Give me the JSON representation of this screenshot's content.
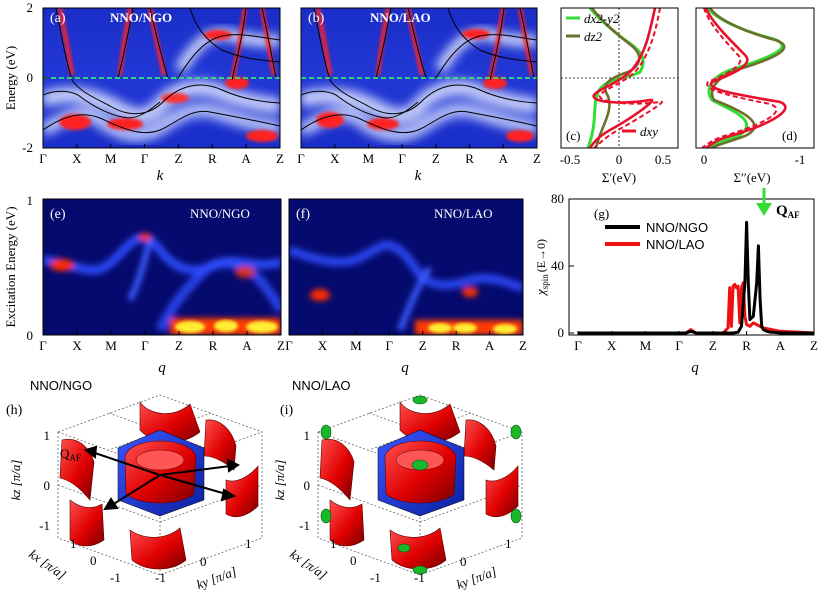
{
  "chart_data": [
    {
      "id": "a",
      "type": "heatmap",
      "label": "(a)",
      "title": "NNO/NGO",
      "ylabel": "Energy (eV)",
      "xlabel": "k",
      "ylim": [
        -2,
        2
      ],
      "yticks": [
        "2",
        "0",
        "-2"
      ],
      "ticks": [
        "Γ",
        "X",
        "M",
        "Γ",
        "Z",
        "R",
        "A",
        "Z"
      ]
    },
    {
      "id": "b",
      "type": "heatmap",
      "label": "(b)",
      "title": "NNO/LAO",
      "xlabel": "k",
      "ylim": [
        -2,
        2
      ],
      "ticks": [
        "Γ",
        "X",
        "M",
        "Γ",
        "Z",
        "R",
        "A",
        "Z"
      ]
    },
    {
      "id": "c",
      "type": "line",
      "label": "(c)",
      "xlabel": "Σ′(eV)",
      "xticks": [
        "-0.5",
        "0",
        "0.5"
      ],
      "xlim": [
        -0.6,
        0.7
      ],
      "legend": [
        "dx2-y2",
        "dz2",
        "dxy"
      ],
      "colors": {
        "dx2-y2": "#33dd33",
        "dz2": "#6f6f2f",
        "dxy": "#e8102a"
      }
    },
    {
      "id": "d",
      "type": "line",
      "label": "(d)",
      "xlabel": "Σ′′(eV)",
      "xticks": [
        "0",
        "-1"
      ],
      "xlim": [
        0.1,
        -1.1
      ]
    },
    {
      "id": "e",
      "type": "heatmap",
      "label": "(e)",
      "title": "NNO/NGO",
      "ylabel": "Excitation Energy (eV)",
      "xlabel": "q",
      "ylim": [
        0,
        1
      ],
      "yticks": [
        "1",
        "0"
      ],
      "ticks": [
        "Γ",
        "X",
        "M",
        "Γ",
        "Z",
        "R",
        "A",
        "Z"
      ]
    },
    {
      "id": "f",
      "type": "heatmap",
      "label": "(f)",
      "title": "NNO/LAO",
      "xlabel": "q",
      "ticks": [
        "Γ",
        "X",
        "M",
        "Γ",
        "Z",
        "R",
        "A",
        "Z"
      ]
    },
    {
      "id": "g",
      "type": "line",
      "label": "(g)",
      "ylabel": "χ″spin (E→0)",
      "ylabel_main": "χ",
      "ylabel_sub": "spin",
      "ylabel_rest": "(E→0)",
      "xlabel": "q",
      "ylim": [
        0,
        80
      ],
      "yticks": [
        "0",
        "40",
        "80"
      ],
      "ticks": [
        "Γ",
        "X",
        "M",
        "Γ",
        "Z",
        "R",
        "A",
        "Z"
      ],
      "annotation": "Q",
      "annotation_sub": "AF",
      "series": [
        {
          "name": "NNO/NGO",
          "color": "#000000",
          "x": [
            0,
            3.2,
            3.35,
            3.5,
            4.2,
            4.6,
            4.75,
            4.85,
            4.95,
            5.0,
            5.05,
            5.1,
            5.2,
            5.3,
            5.35,
            5.4,
            5.45,
            5.5,
            5.6,
            5.7,
            5.8,
            6.0,
            7.0
          ],
          "values": [
            0,
            0,
            1,
            0,
            0,
            0,
            0.5,
            4,
            30,
            66,
            30,
            8,
            10,
            30,
            52,
            20,
            4,
            2,
            1,
            0.5,
            0.5,
            0,
            0
          ]
        },
        {
          "name": "NNO/LAO",
          "color": "#ee1111",
          "x": [
            0,
            3.2,
            3.35,
            3.5,
            4.3,
            4.45,
            4.5,
            4.55,
            4.6,
            4.65,
            4.7,
            4.75,
            4.8,
            4.85,
            4.9,
            4.95,
            5.0,
            5.1,
            5.2,
            5.3,
            5.5,
            6.0,
            7.0
          ],
          "values": [
            0,
            0,
            2,
            0,
            0,
            3,
            27,
            4,
            28,
            29,
            27,
            28,
            6,
            27,
            30,
            10,
            5,
            4,
            6,
            5,
            3,
            1,
            0
          ]
        }
      ]
    },
    {
      "id": "h",
      "type": "other",
      "label": "(h)",
      "title": "NNO/NGO",
      "annotation": "Q",
      "annotation_sub": "AF",
      "zlabel": "kz [π/a]",
      "xlabel": "kx [π/a]",
      "ylabel": "ky [π/a]",
      "ticks_z": [
        "1",
        "0",
        "-1"
      ],
      "ticks_x": [
        "1",
        "0",
        "-1"
      ],
      "ticks_y": [
        "-1",
        "0",
        "1"
      ]
    },
    {
      "id": "i",
      "type": "other",
      "label": "(i)",
      "title": "NNO/LAO",
      "zlabel": "kz [π/a]",
      "xlabel": "kx [π/a]",
      "ylabel": "ky [π/a]",
      "ticks_z": [
        "1",
        "0",
        "-1"
      ],
      "ticks_x": [
        "1",
        "0",
        "-1"
      ],
      "ticks_y": [
        "-1",
        "0",
        "1"
      ]
    }
  ]
}
